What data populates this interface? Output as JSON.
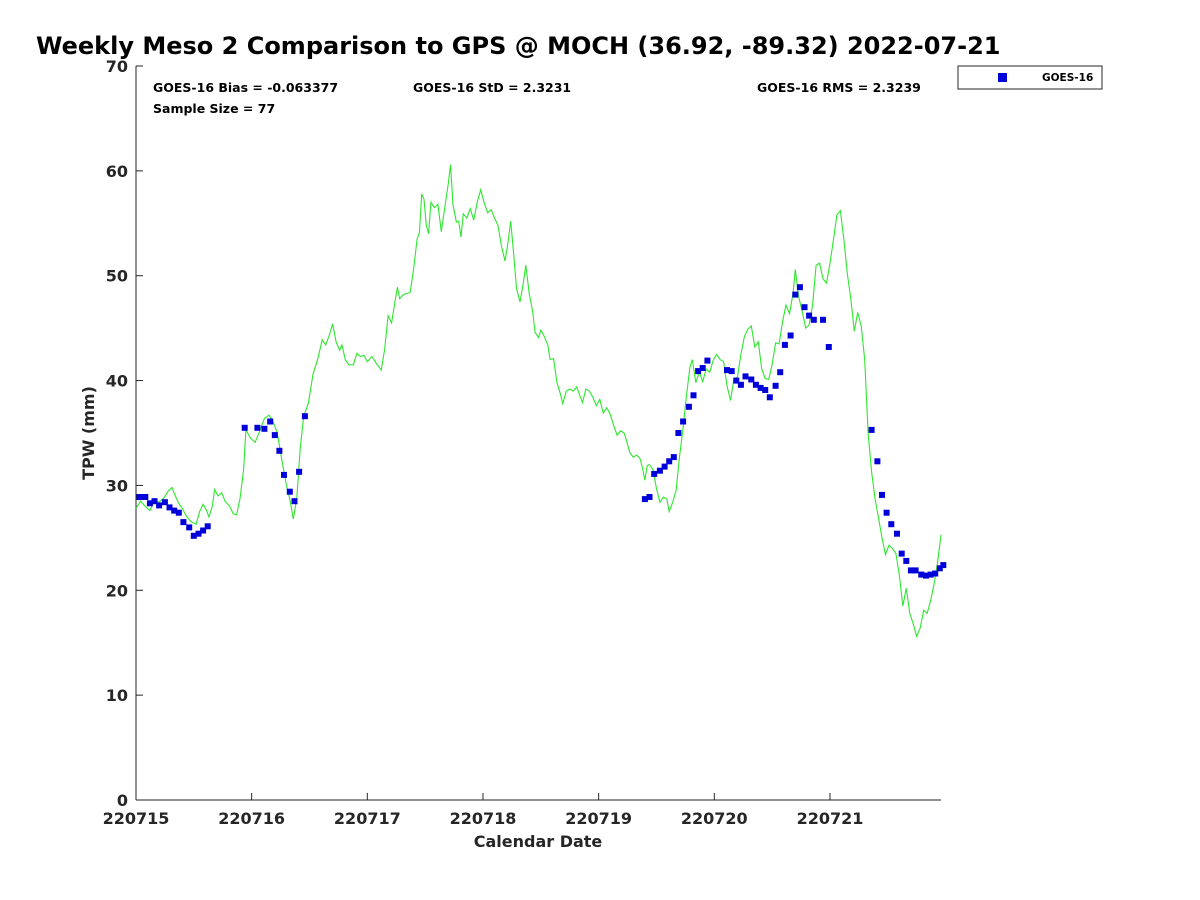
{
  "chart_data": {
    "type": "scatter",
    "title": "Weekly Meso 2 Comparison to GPS @ MOCH (36.92, -89.32) 2022-07-21",
    "xlabel": "Calendar Date",
    "ylabel": "TPW (mm)",
    "x_ticks": [
      "220715",
      "220716",
      "220717",
      "220718",
      "220719",
      "220720",
      "220721"
    ],
    "xlim": [
      0,
      6.96
    ],
    "ylim": [
      0,
      70
    ],
    "y_ticks": [
      0,
      10,
      20,
      30,
      40,
      50,
      60,
      70
    ],
    "grid": false,
    "legend_position": "top-right",
    "stats": {
      "bias": "GOES-16 Bias = -0.063377",
      "std": "GOES-16 StD = 2.3231",
      "rms": "GOES-16 RMS = 2.3239",
      "sample": "Sample Size = 77"
    },
    "colors": {
      "goes": "#0000d9",
      "gps": "#2ee62e"
    },
    "series": [
      {
        "name": "GOES-16",
        "kind": "scatter",
        "points": [
          [
            0.03,
            28.9
          ],
          [
            0.08,
            28.9
          ],
          [
            0.12,
            28.3
          ],
          [
            0.16,
            28.5
          ],
          [
            0.2,
            28.1
          ],
          [
            0.25,
            28.4
          ],
          [
            0.29,
            27.9
          ],
          [
            0.33,
            27.6
          ],
          [
            0.37,
            27.4
          ],
          [
            0.41,
            26.5
          ],
          [
            0.46,
            26.0
          ],
          [
            0.5,
            25.2
          ],
          [
            0.54,
            25.4
          ],
          [
            0.58,
            25.7
          ],
          [
            0.62,
            26.1
          ],
          [
            0.94,
            35.5
          ],
          [
            1.05,
            35.5
          ],
          [
            1.11,
            35.4
          ],
          [
            1.16,
            36.1
          ],
          [
            1.2,
            34.8
          ],
          [
            1.24,
            33.3
          ],
          [
            1.28,
            31.0
          ],
          [
            1.33,
            29.4
          ],
          [
            1.37,
            28.5
          ],
          [
            1.41,
            31.3
          ],
          [
            1.46,
            36.6
          ],
          [
            4.4,
            28.7
          ],
          [
            4.44,
            28.9
          ],
          [
            4.48,
            31.1
          ],
          [
            4.53,
            31.4
          ],
          [
            4.57,
            31.8
          ],
          [
            4.61,
            32.3
          ],
          [
            4.65,
            32.7
          ],
          [
            4.69,
            35.0
          ],
          [
            4.73,
            36.1
          ],
          [
            4.78,
            37.5
          ],
          [
            4.82,
            38.6
          ],
          [
            4.86,
            40.9
          ],
          [
            4.9,
            41.2
          ],
          [
            4.94,
            41.9
          ],
          [
            5.11,
            41.0
          ],
          [
            5.15,
            40.9
          ],
          [
            5.19,
            40.0
          ],
          [
            5.23,
            39.6
          ],
          [
            5.27,
            40.4
          ],
          [
            5.32,
            40.1
          ],
          [
            5.36,
            39.6
          ],
          [
            5.4,
            39.3
          ],
          [
            5.44,
            39.1
          ],
          [
            5.48,
            38.4
          ],
          [
            5.53,
            39.5
          ],
          [
            5.57,
            40.8
          ],
          [
            5.61,
            43.4
          ],
          [
            5.66,
            44.3
          ],
          [
            5.7,
            48.2
          ],
          [
            5.74,
            48.9
          ],
          [
            5.78,
            47.0
          ],
          [
            5.82,
            46.2
          ],
          [
            5.86,
            45.8
          ],
          [
            5.94,
            45.8
          ],
          [
            5.99,
            43.2
          ],
          [
            6.36,
            35.3
          ],
          [
            6.41,
            32.3
          ],
          [
            6.45,
            29.1
          ],
          [
            6.49,
            27.4
          ],
          [
            6.53,
            26.3
          ],
          [
            6.58,
            25.4
          ],
          [
            6.62,
            23.5
          ],
          [
            6.66,
            22.8
          ],
          [
            6.7,
            21.9
          ],
          [
            6.74,
            21.9
          ],
          [
            6.79,
            21.5
          ],
          [
            6.83,
            21.4
          ],
          [
            6.87,
            21.5
          ],
          [
            6.91,
            21.6
          ],
          [
            6.95,
            22.1
          ],
          [
            6.98,
            22.4
          ]
        ]
      },
      {
        "kind": "line",
        "points": [
          [
            0.0,
            27.8
          ],
          [
            0.04,
            28.5
          ],
          [
            0.08,
            28.0
          ],
          [
            0.12,
            27.6
          ],
          [
            0.16,
            28.6
          ],
          [
            0.2,
            28.4
          ],
          [
            0.24,
            28.8
          ],
          [
            0.28,
            29.5
          ],
          [
            0.31,
            29.8
          ],
          [
            0.34,
            29.0
          ],
          [
            0.37,
            28.3
          ],
          [
            0.4,
            27.8
          ],
          [
            0.44,
            27.0
          ],
          [
            0.48,
            26.5
          ],
          [
            0.52,
            26.3
          ],
          [
            0.55,
            27.5
          ],
          [
            0.58,
            28.2
          ],
          [
            0.61,
            27.6
          ],
          [
            0.63,
            27.0
          ],
          [
            0.66,
            28.0
          ],
          [
            0.68,
            29.6
          ],
          [
            0.71,
            29.0
          ],
          [
            0.74,
            29.3
          ],
          [
            0.77,
            28.5
          ],
          [
            0.81,
            28.0
          ],
          [
            0.84,
            27.3
          ],
          [
            0.87,
            27.2
          ],
          [
            0.9,
            28.8
          ],
          [
            0.93,
            31.5
          ],
          [
            0.95,
            35.3
          ],
          [
            0.99,
            34.5
          ],
          [
            1.03,
            34.1
          ],
          [
            1.07,
            35.2
          ],
          [
            1.11,
            36.4
          ],
          [
            1.15,
            36.7
          ],
          [
            1.18,
            36.2
          ],
          [
            1.22,
            35.1
          ],
          [
            1.26,
            32.5
          ],
          [
            1.3,
            30.0
          ],
          [
            1.33,
            28.7
          ],
          [
            1.36,
            26.8
          ],
          [
            1.39,
            28.8
          ],
          [
            1.42,
            33.5
          ],
          [
            1.45,
            36.6
          ],
          [
            1.49,
            37.8
          ],
          [
            1.53,
            40.6
          ],
          [
            1.57,
            42.0
          ],
          [
            1.61,
            43.9
          ],
          [
            1.64,
            43.4
          ],
          [
            1.67,
            44.3
          ],
          [
            1.7,
            45.4
          ],
          [
            1.73,
            43.7
          ],
          [
            1.76,
            42.9
          ],
          [
            1.78,
            43.4
          ],
          [
            1.81,
            42.0
          ],
          [
            1.84,
            41.5
          ],
          [
            1.88,
            41.5
          ],
          [
            1.91,
            42.6
          ],
          [
            1.94,
            42.3
          ],
          [
            1.97,
            42.4
          ],
          [
            2.0,
            41.8
          ],
          [
            2.04,
            42.3
          ],
          [
            2.08,
            41.6
          ],
          [
            2.12,
            41.0
          ],
          [
            2.15,
            43.0
          ],
          [
            2.18,
            46.2
          ],
          [
            2.21,
            45.5
          ],
          [
            2.24,
            47.6
          ],
          [
            2.26,
            48.9
          ],
          [
            2.28,
            47.8
          ],
          [
            2.31,
            48.2
          ],
          [
            2.34,
            48.3
          ],
          [
            2.37,
            48.4
          ],
          [
            2.4,
            50.6
          ],
          [
            2.43,
            53.5
          ],
          [
            2.45,
            54.1
          ],
          [
            2.47,
            57.8
          ],
          [
            2.49,
            57.3
          ],
          [
            2.51,
            54.8
          ],
          [
            2.53,
            54.0
          ],
          [
            2.55,
            57.0
          ],
          [
            2.58,
            56.5
          ],
          [
            2.61,
            56.8
          ],
          [
            2.64,
            54.2
          ],
          [
            2.67,
            56.5
          ],
          [
            2.7,
            58.8
          ],
          [
            2.72,
            60.6
          ],
          [
            2.74,
            56.8
          ],
          [
            2.77,
            55.1
          ],
          [
            2.79,
            55.2
          ],
          [
            2.81,
            53.7
          ],
          [
            2.83,
            55.9
          ],
          [
            2.86,
            55.5
          ],
          [
            2.89,
            56.4
          ],
          [
            2.92,
            55.3
          ],
          [
            2.95,
            57.0
          ],
          [
            2.98,
            58.2
          ],
          [
            3.01,
            57.0
          ],
          [
            3.04,
            56.0
          ],
          [
            3.07,
            56.3
          ],
          [
            3.1,
            55.5
          ],
          [
            3.13,
            54.8
          ],
          [
            3.16,
            52.8
          ],
          [
            3.19,
            51.4
          ],
          [
            3.21,
            52.7
          ],
          [
            3.24,
            55.2
          ],
          [
            3.26,
            52.7
          ],
          [
            3.29,
            48.8
          ],
          [
            3.32,
            47.5
          ],
          [
            3.35,
            49.4
          ],
          [
            3.37,
            51.0
          ],
          [
            3.4,
            48.3
          ],
          [
            3.43,
            46.6
          ],
          [
            3.45,
            44.6
          ],
          [
            3.48,
            44.1
          ],
          [
            3.5,
            44.8
          ],
          [
            3.53,
            44.2
          ],
          [
            3.56,
            43.4
          ],
          [
            3.58,
            42.0
          ],
          [
            3.61,
            42.1
          ],
          [
            3.64,
            39.8
          ],
          [
            3.67,
            38.7
          ],
          [
            3.69,
            37.8
          ],
          [
            3.72,
            39.0
          ],
          [
            3.75,
            39.2
          ],
          [
            3.78,
            39.0
          ],
          [
            3.81,
            39.4
          ],
          [
            3.84,
            38.5
          ],
          [
            3.86,
            37.9
          ],
          [
            3.89,
            39.2
          ],
          [
            3.92,
            39.0
          ],
          [
            3.95,
            38.4
          ],
          [
            3.98,
            37.6
          ],
          [
            4.01,
            38.2
          ],
          [
            4.04,
            36.9
          ],
          [
            4.07,
            37.4
          ],
          [
            4.1,
            36.8
          ],
          [
            4.13,
            35.7
          ],
          [
            4.16,
            34.8
          ],
          [
            4.19,
            35.2
          ],
          [
            4.22,
            35.0
          ],
          [
            4.24,
            34.3
          ],
          [
            4.27,
            33.1
          ],
          [
            4.3,
            32.7
          ],
          [
            4.33,
            32.9
          ],
          [
            4.36,
            32.5
          ],
          [
            4.38,
            31.6
          ],
          [
            4.4,
            30.5
          ],
          [
            4.42,
            31.9
          ],
          [
            4.44,
            32.0
          ],
          [
            4.47,
            31.5
          ],
          [
            4.5,
            29.7
          ],
          [
            4.53,
            28.4
          ],
          [
            4.56,
            28.9
          ],
          [
            4.59,
            28.7
          ],
          [
            4.61,
            27.5
          ],
          [
            4.64,
            28.4
          ],
          [
            4.67,
            29.5
          ],
          [
            4.7,
            32.8
          ],
          [
            4.73,
            35.5
          ],
          [
            4.76,
            38.6
          ],
          [
            4.79,
            41.3
          ],
          [
            4.81,
            42.0
          ],
          [
            4.84,
            39.8
          ],
          [
            4.87,
            40.8
          ],
          [
            4.9,
            39.9
          ],
          [
            4.93,
            41.1
          ],
          [
            4.96,
            40.8
          ],
          [
            4.99,
            41.9
          ],
          [
            5.02,
            42.5
          ],
          [
            5.05,
            42.0
          ],
          [
            5.08,
            41.8
          ],
          [
            5.11,
            39.5
          ],
          [
            5.14,
            38.1
          ],
          [
            5.17,
            40.2
          ],
          [
            5.2,
            40.3
          ],
          [
            5.23,
            42.5
          ],
          [
            5.26,
            44.2
          ],
          [
            5.29,
            44.9
          ],
          [
            5.32,
            45.2
          ],
          [
            5.35,
            43.2
          ],
          [
            5.38,
            43.7
          ],
          [
            5.41,
            41.1
          ],
          [
            5.44,
            40.2
          ],
          [
            5.47,
            40.1
          ],
          [
            5.5,
            41.5
          ],
          [
            5.53,
            43.6
          ],
          [
            5.56,
            43.5
          ],
          [
            5.59,
            45.6
          ],
          [
            5.62,
            47.2
          ],
          [
            5.65,
            46.4
          ],
          [
            5.68,
            48.3
          ],
          [
            5.7,
            50.6
          ],
          [
            5.73,
            48.0
          ],
          [
            5.76,
            46.6
          ],
          [
            5.79,
            45.0
          ],
          [
            5.82,
            45.3
          ],
          [
            5.85,
            47.2
          ],
          [
            5.88,
            51.0
          ],
          [
            5.91,
            51.2
          ],
          [
            5.94,
            49.7
          ],
          [
            5.97,
            49.3
          ],
          [
            6.0,
            51.2
          ],
          [
            6.03,
            53.4
          ],
          [
            6.06,
            55.8
          ],
          [
            6.09,
            56.2
          ],
          [
            6.12,
            53.5
          ],
          [
            6.15,
            50.2
          ],
          [
            6.18,
            47.8
          ],
          [
            6.21,
            44.7
          ],
          [
            6.24,
            46.5
          ],
          [
            6.27,
            45.2
          ],
          [
            6.3,
            42.0
          ],
          [
            6.33,
            35.0
          ],
          [
            6.36,
            31.3
          ],
          [
            6.39,
            28.7
          ],
          [
            6.42,
            26.9
          ],
          [
            6.45,
            25.0
          ],
          [
            6.48,
            23.4
          ],
          [
            6.51,
            24.3
          ],
          [
            6.54,
            24.0
          ],
          [
            6.57,
            23.5
          ],
          [
            6.6,
            21.4
          ],
          [
            6.63,
            18.5
          ],
          [
            6.66,
            20.2
          ],
          [
            6.69,
            17.8
          ],
          [
            6.72,
            16.8
          ],
          [
            6.75,
            15.6
          ],
          [
            6.78,
            16.4
          ],
          [
            6.81,
            18.1
          ],
          [
            6.84,
            17.8
          ],
          [
            6.87,
            19.0
          ],
          [
            6.9,
            20.6
          ],
          [
            6.93,
            22.6
          ],
          [
            6.96,
            25.3
          ]
        ]
      }
    ]
  }
}
